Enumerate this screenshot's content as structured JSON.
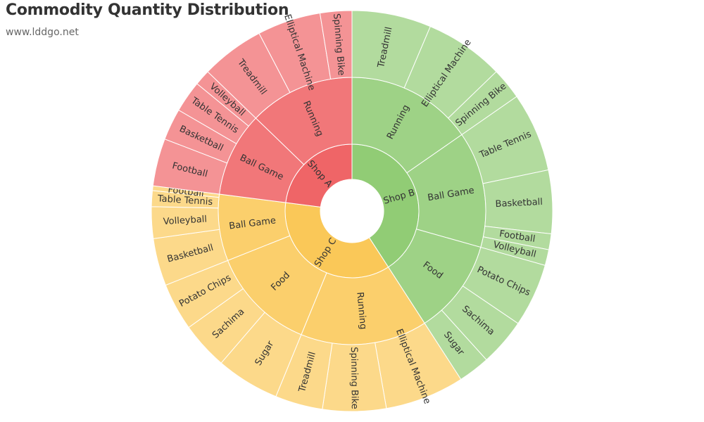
{
  "chart_data": {
    "type": "sunburst",
    "title": "Commodity Quantity Distribution",
    "subtitle": "www.lddgo.net",
    "shops": [
      {
        "name": "Shop A",
        "color": "#EF6567",
        "categories": [
          {
            "name": "Ball Game",
            "children": [
              {
                "name": "Football",
                "value": 3
              },
              {
                "name": "Basketball",
                "value": 2
              },
              {
                "name": "Table Tennis",
                "value": 2
              },
              {
                "name": "Volleyball",
                "value": 1
              }
            ]
          },
          {
            "name": "Running",
            "children": [
              {
                "name": "Treadmill",
                "value": 4
              },
              {
                "name": "Elliptical Machine",
                "value": 4
              },
              {
                "name": "Spinning Bike",
                "value": 2
              }
            ]
          }
        ]
      },
      {
        "name": "Shop B",
        "color": "#91CC75",
        "categories": [
          {
            "name": "Running",
            "children": [
              {
                "name": "Treadmill",
                "value": 5
              },
              {
                "name": "Elliptical Machine",
                "value": 5
              },
              {
                "name": "Spinning Bike",
                "value": 2
              }
            ]
          },
          {
            "name": "Ball Game",
            "children": [
              {
                "name": "Table Tennis",
                "value": 5
              },
              {
                "name": "Basketball",
                "value": 4
              },
              {
                "name": "Football",
                "value": 1
              },
              {
                "name": "Volleyball",
                "value": 1
              }
            ]
          },
          {
            "name": "Food",
            "children": [
              {
                "name": "Potato Chips",
                "value": 4
              },
              {
                "name": "Sachima",
                "value": 3
              },
              {
                "name": "Sugar",
                "value": 2
              }
            ]
          }
        ]
      },
      {
        "name": "Shop C",
        "color": "#FAC858",
        "categories": [
          {
            "name": "Running",
            "children": [
              {
                "name": "Elliptical Machine",
                "value": 5
              },
              {
                "name": "Spinning Bike",
                "value": 4
              },
              {
                "name": "Treadmill",
                "value": 3
              }
            ]
          },
          {
            "name": "Food",
            "children": [
              {
                "name": "Sugar",
                "value": 4
              },
              {
                "name": "Sachima",
                "value": 3
              },
              {
                "name": "Potato Chips",
                "value": 3
              }
            ]
          },
          {
            "name": "Ball Game",
            "children": [
              {
                "name": "Basketball",
                "value": 3
              },
              {
                "name": "Volleyball",
                "value": 2
              },
              {
                "name": "Table Tennis",
                "value": 1
              },
              {
                "name": "Football",
                "value": 0.3
              }
            ]
          }
        ]
      }
    ]
  }
}
